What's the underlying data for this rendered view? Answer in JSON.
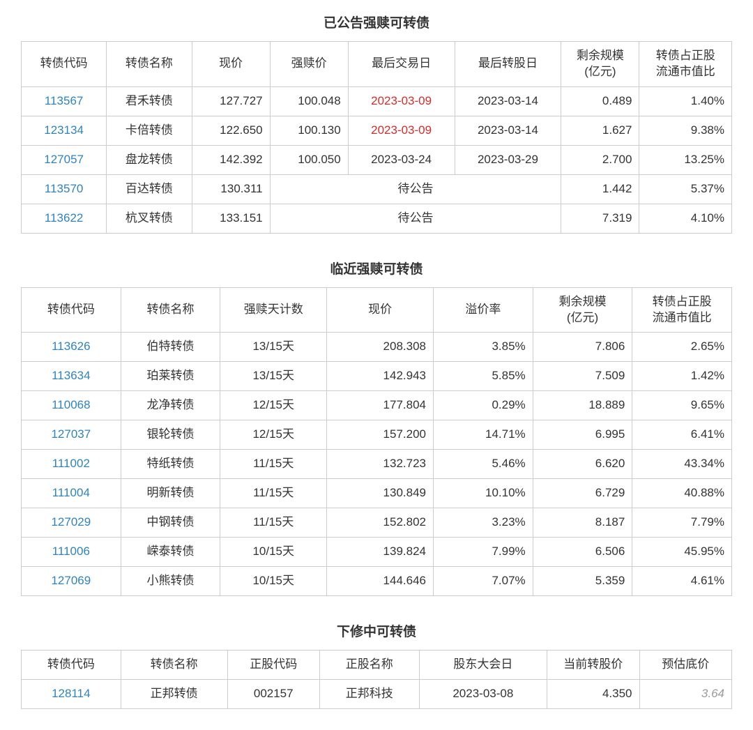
{
  "colors": {
    "text": "#333333",
    "link": "#2e84c1",
    "red_date": "#d92b2b",
    "gray_italic": "#9a9a9a",
    "border": "#cccccc",
    "background": "#ffffff"
  },
  "typography": {
    "base_fontsize_pt": 13,
    "title_fontsize_pt": 14,
    "title_fontweight": 700,
    "font_family": "PingFang SC / Microsoft YaHei"
  },
  "table1": {
    "title": "已公告强赎可转债",
    "col_widths_pct": [
      12,
      12,
      11,
      11,
      15,
      15,
      11,
      13
    ],
    "headers": [
      "转债代码",
      "转债名称",
      "现价",
      "强赎价",
      "最后交易日",
      "最后转股日",
      "剩余规模\n(亿元)",
      "转债占正股\n流通市值比"
    ],
    "rows": [
      {
        "code": "113567",
        "name": "君禾转债",
        "price": "127.727",
        "redeem_price": "100.048",
        "last_trade": "2023-03-09",
        "last_trade_red": true,
        "last_conv": "2023-03-14",
        "remain": "0.489",
        "ratio": "1.40%"
      },
      {
        "code": "123134",
        "name": "卡倍转债",
        "price": "122.650",
        "redeem_price": "100.130",
        "last_trade": "2023-03-09",
        "last_trade_red": true,
        "last_conv": "2023-03-14",
        "remain": "1.627",
        "ratio": "9.38%"
      },
      {
        "code": "127057",
        "name": "盘龙转债",
        "price": "142.392",
        "redeem_price": "100.050",
        "last_trade": "2023-03-24",
        "last_trade_red": false,
        "last_conv": "2023-03-29",
        "remain": "2.700",
        "ratio": "13.25%"
      },
      {
        "code": "113570",
        "name": "百达转债",
        "price": "130.311",
        "pending": "待公告",
        "remain": "1.442",
        "ratio": "5.37%"
      },
      {
        "code": "113622",
        "name": "杭叉转债",
        "price": "133.151",
        "pending": "待公告",
        "remain": "7.319",
        "ratio": "4.10%"
      }
    ]
  },
  "table2": {
    "title": "临近强赎可转债",
    "col_widths_pct": [
      14,
      14,
      15,
      15,
      14,
      14,
      14
    ],
    "headers": [
      "转债代码",
      "转债名称",
      "强赎天计数",
      "现价",
      "溢价率",
      "剩余规模\n(亿元)",
      "转债占正股\n流通市值比"
    ],
    "rows": [
      {
        "code": "113626",
        "name": "伯特转债",
        "days": "13/15天",
        "price": "208.308",
        "premium": "3.85%",
        "remain": "7.806",
        "ratio": "2.65%"
      },
      {
        "code": "113634",
        "name": "珀莱转债",
        "days": "13/15天",
        "price": "142.943",
        "premium": "5.85%",
        "remain": "7.509",
        "ratio": "1.42%"
      },
      {
        "code": "110068",
        "name": "龙净转债",
        "days": "12/15天",
        "price": "177.804",
        "premium": "0.29%",
        "remain": "18.889",
        "ratio": "9.65%"
      },
      {
        "code": "127037",
        "name": "银轮转债",
        "days": "12/15天",
        "price": "157.200",
        "premium": "14.71%",
        "remain": "6.995",
        "ratio": "6.41%"
      },
      {
        "code": "111002",
        "name": "特纸转债",
        "days": "11/15天",
        "price": "132.723",
        "premium": "5.46%",
        "remain": "6.620",
        "ratio": "43.34%"
      },
      {
        "code": "111004",
        "name": "明新转债",
        "days": "11/15天",
        "price": "130.849",
        "premium": "10.10%",
        "remain": "6.729",
        "ratio": "40.88%"
      },
      {
        "code": "127029",
        "name": "中钢转债",
        "days": "11/15天",
        "price": "152.802",
        "premium": "3.23%",
        "remain": "8.187",
        "ratio": "7.79%"
      },
      {
        "code": "111006",
        "name": "嵘泰转债",
        "days": "10/15天",
        "price": "139.824",
        "premium": "7.99%",
        "remain": "6.506",
        "ratio": "45.95%"
      },
      {
        "code": "127069",
        "name": "小熊转债",
        "days": "10/15天",
        "price": "144.646",
        "premium": "7.07%",
        "remain": "5.359",
        "ratio": "4.61%"
      }
    ]
  },
  "table3": {
    "title": "下修中可转债",
    "col_widths_pct": [
      14,
      15,
      13,
      14,
      18,
      13,
      13
    ],
    "headers": [
      "转债代码",
      "转债名称",
      "正股代码",
      "正股名称",
      "股东大会日",
      "当前转股价",
      "预估底价"
    ],
    "rows": [
      {
        "code": "128114",
        "name": "正邦转债",
        "stock_code": "002157",
        "stock_name": "正邦科技",
        "meeting": "2023-03-08",
        "cur_price": "4.350",
        "est_floor": "3.64"
      }
    ]
  }
}
